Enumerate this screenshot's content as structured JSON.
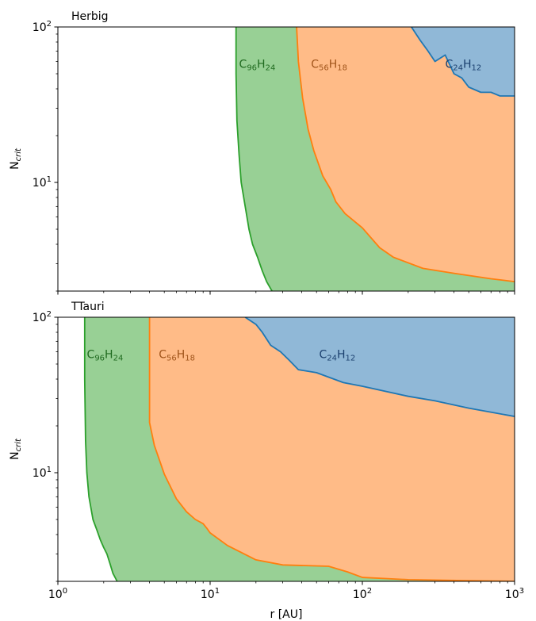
{
  "chart_data": [
    {
      "type": "area",
      "panel_title": "Herbig",
      "xscale": "log",
      "yscale": "log",
      "xlim": [
        1,
        1000
      ],
      "ylim": [
        2,
        100
      ],
      "xticks": [
        {
          "value": 1,
          "base": "10",
          "exp": "0"
        },
        {
          "value": 10,
          "base": "10",
          "exp": "1"
        },
        {
          "value": 100,
          "base": "10",
          "exp": "2"
        },
        {
          "value": 1000,
          "base": "10",
          "exp": "3"
        }
      ],
      "yticks": [
        {
          "value": 10,
          "base": "10",
          "exp": "1"
        },
        {
          "value": 100,
          "base": "10",
          "exp": "2"
        }
      ],
      "xlabel": "",
      "ylabel": {
        "base": "N",
        "sub": "crit"
      },
      "series": [
        {
          "formula": {
            "c": "96",
            "h": "24"
          },
          "color": "#2ca02c",
          "fill": "#98d095",
          "label_pos": {
            "x": 15.5,
            "y": 58
          },
          "x": [
            14.8,
            14.8,
            15.0,
            15.5,
            16.0,
            17.0,
            18.0,
            19.0,
            20.5,
            22.0,
            23.5,
            25.5
          ],
          "y": [
            100,
            50,
            25,
            15,
            10,
            7,
            5,
            4,
            3.3,
            2.7,
            2.3,
            2.0
          ]
        },
        {
          "formula": {
            "c": "56",
            "h": "18"
          },
          "color": "#ff7f0e",
          "fill": "#ffbb87",
          "label_pos": {
            "x": 46,
            "y": 58
          },
          "x": [
            37.0,
            38.0,
            40.5,
            44.0,
            48.0,
            55.0,
            62.0,
            67.0,
            77.0,
            100.0,
            130.0,
            160.0,
            250.0,
            400.0,
            700.0,
            1000.0
          ],
          "y": [
            100,
            60,
            35,
            22,
            16,
            11,
            9,
            7.5,
            6.3,
            5.1,
            3.8,
            3.3,
            2.8,
            2.6,
            2.4,
            2.3
          ],
          "top_right": [
            1000,
            100
          ]
        },
        {
          "formula": {
            "c": "24",
            "h": "12"
          },
          "color": "#1f77b4",
          "fill": "#90b8d7",
          "label_pos": {
            "x": 350,
            "y": 58
          },
          "x": [
            210.0,
            240.0,
            270.0,
            300.0,
            350.0,
            400.0,
            450.0,
            500.0,
            600.0,
            700.0,
            800.0,
            1000.0
          ],
          "y": [
            100,
            82,
            70,
            60,
            66,
            50,
            47,
            41,
            38,
            38,
            36,
            36
          ],
          "top_right": [
            1000,
            100
          ]
        }
      ]
    },
    {
      "type": "area",
      "panel_title": "TTauri",
      "xscale": "log",
      "yscale": "log",
      "xlim": [
        1,
        1000
      ],
      "ylim": [
        2,
        100
      ],
      "xticks": [
        {
          "value": 1,
          "base": "10",
          "exp": "0"
        },
        {
          "value": 10,
          "base": "10",
          "exp": "1"
        },
        {
          "value": 100,
          "base": "10",
          "exp": "2"
        },
        {
          "value": 1000,
          "base": "10",
          "exp": "3"
        }
      ],
      "yticks": [
        {
          "value": 10,
          "base": "10",
          "exp": "1"
        },
        {
          "value": 100,
          "base": "10",
          "exp": "2"
        }
      ],
      "xlabel": "r [AU]",
      "ylabel": {
        "base": "N",
        "sub": "crit"
      },
      "series": [
        {
          "formula": {
            "c": "96",
            "h": "24"
          },
          "color": "#2ca02c",
          "fill": "#98d095",
          "label_pos": {
            "x": 1.55,
            "y": 58
          },
          "x": [
            1.5,
            1.5,
            1.52,
            1.55,
            1.6,
            1.7,
            1.8,
            1.9,
            2.0,
            2.1,
            2.2,
            2.3,
            2.45
          ],
          "y": [
            100,
            40,
            16,
            10,
            7,
            5,
            4.3,
            3.7,
            3.3,
            3.0,
            2.6,
            2.25,
            2.0
          ]
        },
        {
          "formula": {
            "c": "56",
            "h": "18"
          },
          "color": "#ff7f0e",
          "fill": "#ffbb87",
          "label_pos": {
            "x": 4.6,
            "y": 58
          },
          "x": [
            4.0,
            4.0,
            4.3,
            5.0,
            6.0,
            7.0,
            8.0,
            9.0,
            9.5,
            10.0,
            13.0,
            20.0,
            30.0,
            60.0,
            80.0,
            100.0,
            200.0,
            500.0,
            1000.0
          ],
          "y": [
            100,
            21,
            15,
            9.8,
            6.8,
            5.6,
            5.0,
            4.7,
            4.4,
            4.1,
            3.4,
            2.75,
            2.55,
            2.5,
            2.3,
            2.12,
            2.05,
            2.02,
            2.0
          ],
          "top_right": [
            1000,
            100
          ]
        },
        {
          "formula": {
            "c": "24",
            "h": "12"
          },
          "color": "#1f77b4",
          "fill": "#90b8d7",
          "label_pos": {
            "x": 52,
            "y": 58
          },
          "x": [
            17.0,
            20.0,
            22.0,
            25.0,
            29.0,
            33.0,
            38.0,
            50.0,
            75.0,
            100.0,
            200.0,
            300.0,
            500.0,
            1000.0
          ],
          "y": [
            100,
            90,
            80,
            66,
            60,
            53,
            46,
            44,
            38,
            36,
            31,
            29,
            26,
            23
          ],
          "top_right": [
            1000,
            100
          ]
        }
      ]
    }
  ]
}
